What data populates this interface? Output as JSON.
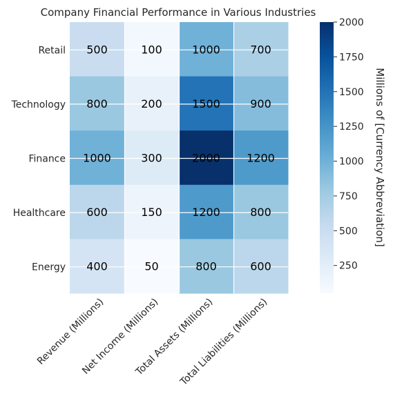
{
  "chart_data": {
    "type": "heatmap",
    "title": "Company Financial Performance in Various Industries",
    "rows": [
      "Retail",
      "Technology",
      "Finance",
      "Healthcare",
      "Energy"
    ],
    "columns": [
      "Revenue (Millions)",
      "Net Income (Millions)",
      "Total Assets (Millions)",
      "Total Liabilities (Millions)"
    ],
    "values": [
      [
        500,
        100,
        1000,
        700
      ],
      [
        800,
        200,
        1500,
        900
      ],
      [
        1000,
        300,
        2000,
        1200
      ],
      [
        600,
        150,
        1200,
        800
      ],
      [
        400,
        50,
        800,
        600
      ]
    ],
    "colormap": "Blues",
    "color_range": [
      50,
      2000
    ],
    "colorbar": {
      "label": "Millions of [Currency Abbreviation]",
      "ticks": [
        250,
        500,
        750,
        1000,
        1250,
        1500,
        1750,
        2000
      ]
    },
    "grid": true
  }
}
